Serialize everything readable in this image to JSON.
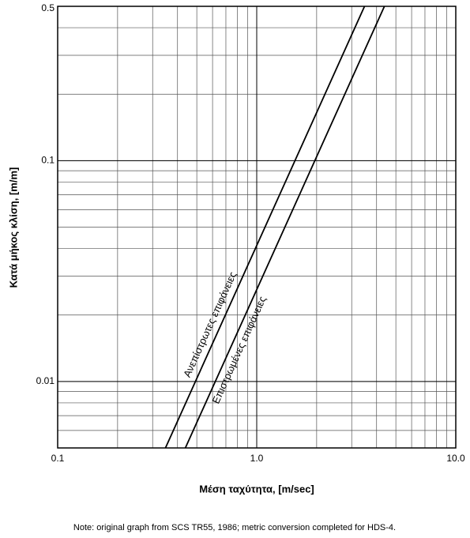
{
  "chart_data": {
    "type": "line",
    "x_label": "Μέση ταχύτητα, [m/sec]",
    "y_label": "Κατά μήκος κλίση, [m/m]",
    "note": "Note:  original graph from SCS TR55, 1986;  metric conversion completed for HDS-4.",
    "xscale": "log",
    "yscale": "log",
    "grid": true,
    "minor_grid": true,
    "xlim": [
      0.1,
      10
    ],
    "ylim": [
      0.005,
      0.5
    ],
    "xticks": [
      0.1,
      {
        "value": 1,
        "label": "1.0"
      },
      {
        "value": 10,
        "label": "10.0"
      }
    ],
    "yticks": [
      0.01,
      0.1,
      0.5
    ],
    "series": [
      {
        "name": "Ανεπίστρωτες επιφάνειες",
        "color": "#000000",
        "x": [
          0.348,
          3.48
        ],
        "values": [
          0.005,
          0.5
        ]
      },
      {
        "name": "Επιστρωμένες επιφάνειες",
        "color": "#000000",
        "x": [
          0.438,
          4.38
        ],
        "values": [
          0.005,
          0.5
        ]
      }
    ]
  }
}
